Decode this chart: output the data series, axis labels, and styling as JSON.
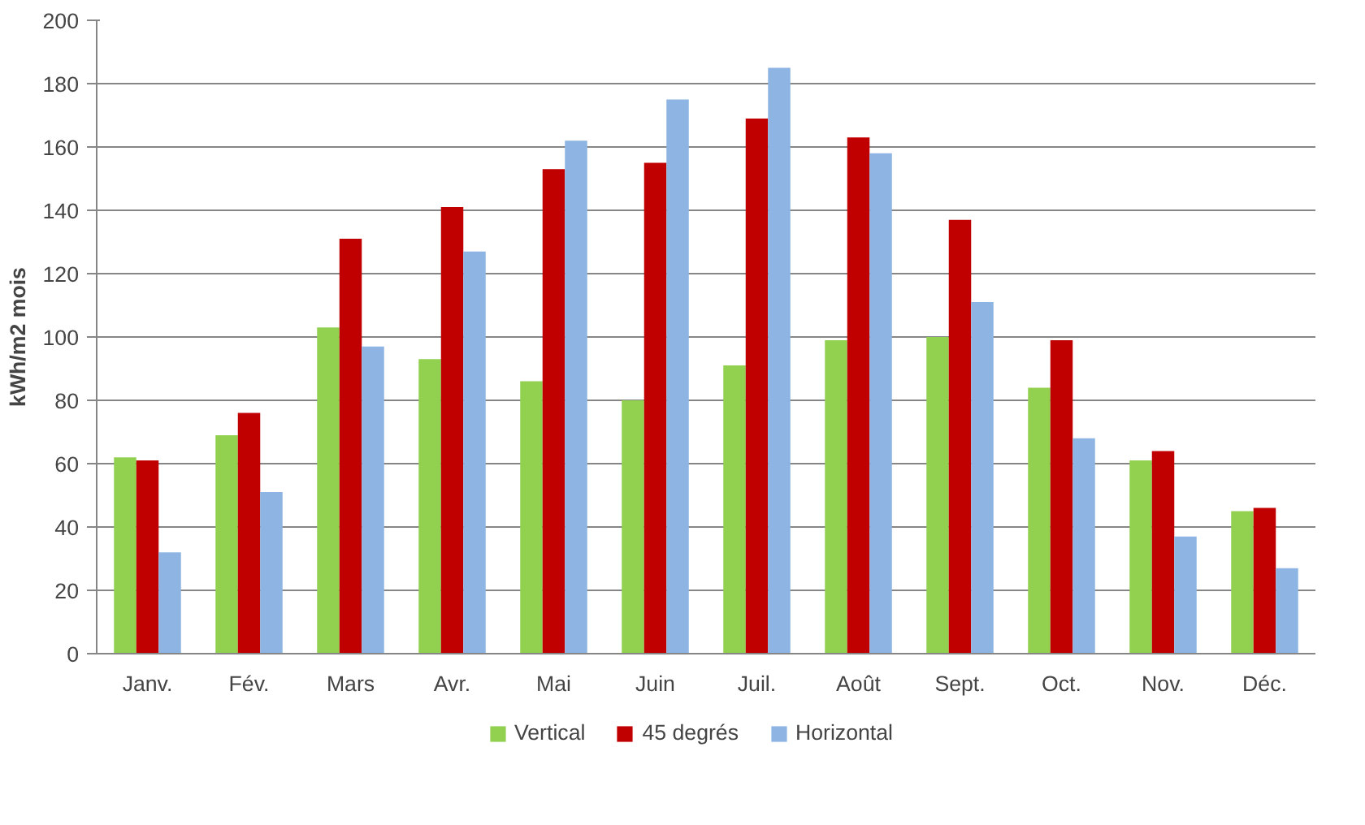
{
  "chart_data": {
    "type": "bar",
    "ylabel": "kWh/m2 mois",
    "categories": [
      "Janv.",
      "Fév.",
      "Mars",
      "Avr.",
      "Mai",
      "Juin",
      "Juil.",
      "Août",
      "Sept.",
      "Oct.",
      "Nov.",
      "Déc."
    ],
    "series": [
      {
        "name": "Vertical",
        "color": "#92d050",
        "values": [
          62,
          69,
          103,
          93,
          86,
          80,
          91,
          99,
          100,
          84,
          61,
          45
        ]
      },
      {
        "name": "45 degrés",
        "color": "#c00000",
        "values": [
          61,
          76,
          131,
          141,
          153,
          155,
          169,
          163,
          137,
          99,
          64,
          46
        ]
      },
      {
        "name": "Horizontal",
        "color": "#8db4e2",
        "values": [
          32,
          51,
          97,
          127,
          162,
          175,
          185,
          158,
          111,
          68,
          37,
          27
        ]
      }
    ],
    "ylim": [
      0,
      200
    ],
    "yticks": [
      0,
      20,
      40,
      60,
      80,
      100,
      120,
      140,
      160,
      180,
      200
    ],
    "grid": "y",
    "legend": "bottom"
  }
}
